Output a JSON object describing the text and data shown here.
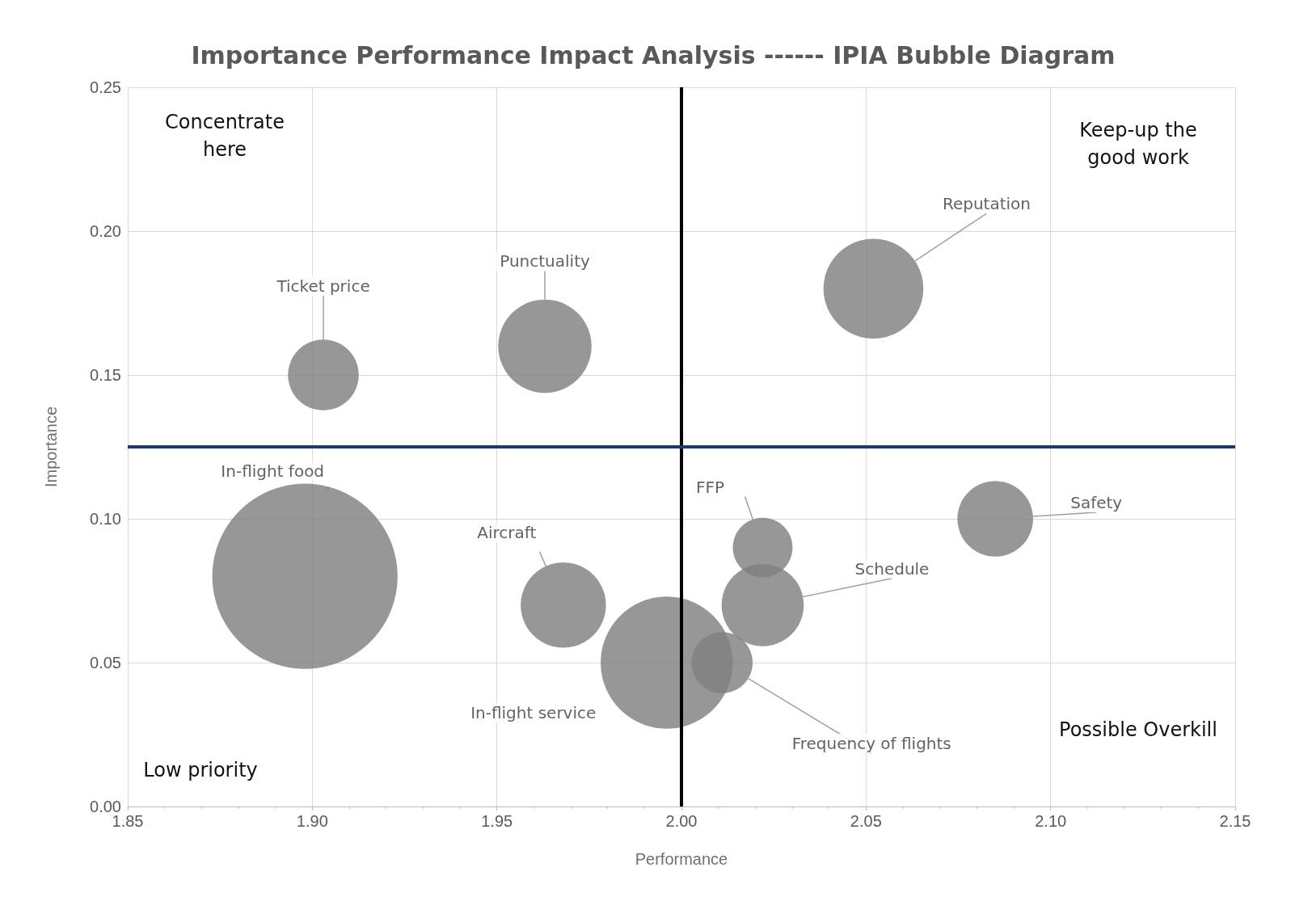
{
  "chart_data": {
    "type": "bubble",
    "title": "Importance Performance Impact Analysis ------ IPIA Bubble Diagram",
    "xlabel": "Performance",
    "ylabel": "Importance",
    "xlim": [
      1.85,
      2.15
    ],
    "xticks": [
      1.85,
      {
        "value": 1.9,
        "label": "1.90"
      },
      1.95,
      {
        "value": 2,
        "label": "2.00"
      },
      2.05,
      {
        "value": 2.1,
        "label": "2.10"
      },
      2.15
    ],
    "ylim": [
      0,
      0.25
    ],
    "yticks": [
      {
        "value": 0,
        "label": "0.00"
      },
      0.05,
      {
        "value": 0.1,
        "label": "0.10"
      },
      0.15,
      {
        "value": 0.2,
        "label": "0.20"
      },
      0.25
    ],
    "grid": true,
    "legend": false,
    "series": [
      {
        "name": "Ticket price",
        "color": "#808080",
        "x": [
          1.903
        ],
        "values": [
          0.15
        ],
        "sizes": [
          0.146
        ]
      },
      {
        "name": "Punctuality",
        "color": "#808080",
        "x": [
          1.963
        ],
        "values": [
          0.16
        ],
        "sizes": [
          0.254
        ]
      },
      {
        "name": "Reputation",
        "color": "#808080",
        "x": [
          2.052
        ],
        "values": [
          0.18
        ],
        "sizes": [
          0.291
        ]
      },
      {
        "name": "In-flight food",
        "color": "#808080",
        "x": [
          1.898
        ],
        "values": [
          0.08
        ],
        "sizes": [
          1
        ]
      },
      {
        "name": "Aircraft",
        "color": "#808080",
        "x": [
          1.968
        ],
        "values": [
          0.07
        ],
        "sizes": [
          0.212
        ]
      },
      {
        "name": "In-flight service",
        "color": "#808080",
        "x": [
          1.996
        ],
        "values": [
          0.05
        ],
        "sizes": [
          0.508
        ]
      },
      {
        "name": "FFP",
        "color": "#808080",
        "x": [
          2.022
        ],
        "values": [
          0.09
        ],
        "sizes": [
          0.104
        ]
      },
      {
        "name": "Schedule",
        "color": "#808080",
        "x": [
          2.022
        ],
        "values": [
          0.07
        ],
        "sizes": [
          0.197
        ]
      },
      {
        "name": "Frequency of flights",
        "color": "#808080",
        "x": [
          2.011
        ],
        "values": [
          0.05
        ],
        "sizes": [
          0.109
        ]
      },
      {
        "name": "Safety",
        "color": "#808080",
        "x": [
          2.085
        ],
        "values": [
          0.1
        ],
        "sizes": [
          0.167
        ]
      }
    ],
    "ref_lines": [
      {
        "axis": "x",
        "value": 2.0,
        "color": "#000000"
      },
      {
        "axis": "y",
        "value": 0.125,
        "color": "#1f3864"
      }
    ],
    "annotations": [
      "Concentrate here",
      "Keep-up the good work",
      "Low priority",
      "Possible Overkill"
    ]
  }
}
